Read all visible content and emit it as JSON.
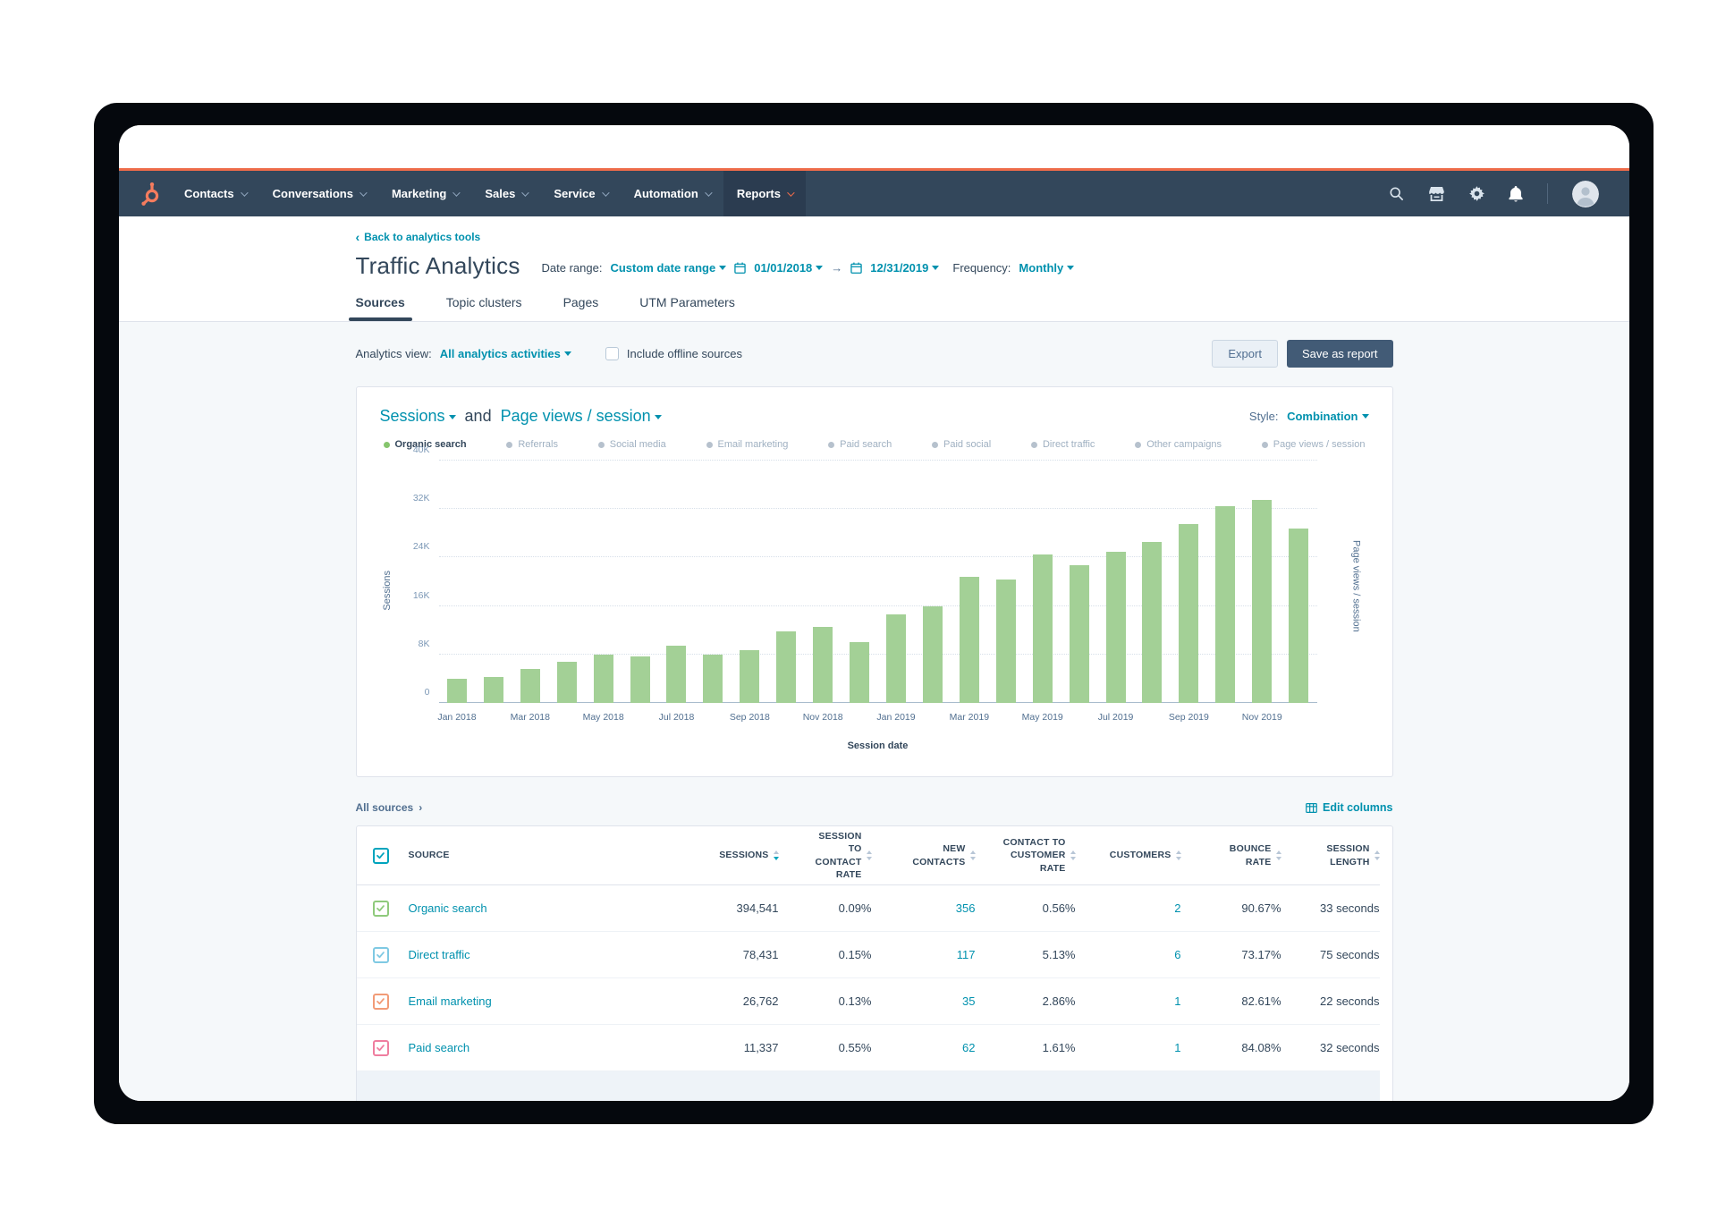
{
  "colors": {
    "accent_orange": "#ee6c4a",
    "logo_orange": "#f57c5e",
    "nav_bg": "#33475b",
    "link_teal": "#0091ae",
    "bar_green": "#a3d096",
    "legend_active_dot": "#86c56d",
    "legend_inactive_dot": "#b6c1cd",
    "frame_black": "#05080d"
  },
  "nav": {
    "items": [
      {
        "label": "Contacts",
        "active": false
      },
      {
        "label": "Conversations",
        "active": false
      },
      {
        "label": "Marketing",
        "active": false
      },
      {
        "label": "Sales",
        "active": false
      },
      {
        "label": "Service",
        "active": false
      },
      {
        "label": "Automation",
        "active": false
      },
      {
        "label": "Reports",
        "active": true
      }
    ]
  },
  "header": {
    "back_link": "Back to analytics tools",
    "title": "Traffic Analytics",
    "date_range_label": "Date range:",
    "date_range_value": "Custom date range",
    "date_start": "01/01/2018",
    "date_arrow": "→",
    "date_end": "12/31/2019",
    "frequency_label": "Frequency:",
    "frequency_value": "Monthly",
    "tabs": [
      {
        "label": "Sources",
        "active": true
      },
      {
        "label": "Topic clusters",
        "active": false
      },
      {
        "label": "Pages",
        "active": false
      },
      {
        "label": "UTM Parameters",
        "active": false
      }
    ]
  },
  "toolbar": {
    "analytics_view_label": "Analytics view:",
    "analytics_view_value": "All analytics activities",
    "offline_checkbox_label": "Include offline sources",
    "export_label": "Export",
    "save_label": "Save as report"
  },
  "chart_card": {
    "metric_primary": "Sessions",
    "conjunction": "and",
    "metric_secondary": "Page views / session",
    "style_label": "Style:",
    "style_value": "Combination",
    "legend": [
      {
        "label": "Organic search",
        "active": true,
        "color": "#86c56d"
      },
      {
        "label": "Referrals",
        "active": false
      },
      {
        "label": "Social media",
        "active": false
      },
      {
        "label": "Email marketing",
        "active": false
      },
      {
        "label": "Paid search",
        "active": false
      },
      {
        "label": "Paid social",
        "active": false
      },
      {
        "label": "Direct traffic",
        "active": false
      },
      {
        "label": "Other campaigns",
        "active": false
      },
      {
        "label": "Page views / session",
        "active": false
      }
    ]
  },
  "chart_data": {
    "type": "bar",
    "title": "Sessions and Page views / session",
    "x": [
      "Jan 2018",
      "Feb 2018",
      "Mar 2018",
      "Apr 2018",
      "May 2018",
      "Jun 2018",
      "Jul 2018",
      "Aug 2018",
      "Sep 2018",
      "Oct 2018",
      "Nov 2018",
      "Dec 2018",
      "Jan 2019",
      "Feb 2019",
      "Mar 2019",
      "Apr 2019",
      "May 2019",
      "Jun 2019",
      "Jul 2019",
      "Aug 2019",
      "Sep 2019",
      "Oct 2019",
      "Nov 2019",
      "Dec 2019"
    ],
    "x_label_every": 2,
    "series": [
      {
        "name": "Organic search",
        "color": "#a3d096",
        "values": [
          4000,
          4300,
          5600,
          6800,
          8000,
          7700,
          9400,
          7900,
          8700,
          11800,
          12500,
          10100,
          14600,
          15900,
          20800,
          20400,
          24500,
          22800,
          25000,
          26600,
          29500,
          32500,
          33500,
          28800
        ]
      }
    ],
    "xlabel": "Session date",
    "ylabel": "Sessions",
    "y2label": "Page views / session",
    "ylim": [
      0,
      40000
    ],
    "yticks": [
      {
        "value": 0,
        "label": "0"
      },
      {
        "value": 8000,
        "label": "8K"
      },
      {
        "value": 16000,
        "label": "16K"
      },
      {
        "value": 24000,
        "label": "24K"
      },
      {
        "value": 32000,
        "label": "32K"
      },
      {
        "value": 40000,
        "label": "40K"
      }
    ],
    "grid": "dotted-horizontal",
    "legend_position": "top"
  },
  "sources_bar": {
    "all_sources": "All sources",
    "edit_columns": "Edit columns"
  },
  "table": {
    "columns": [
      {
        "label": "SOURCE",
        "align": "left",
        "sortable": false
      },
      {
        "label": "SESSIONS",
        "sort": "desc"
      },
      {
        "label": "SESSION TO CONTACT RATE"
      },
      {
        "label": "NEW CONTACTS"
      },
      {
        "label": "CONTACT TO CUSTOMER RATE"
      },
      {
        "label": "CUSTOMERS"
      },
      {
        "label": "BOUNCE RATE"
      },
      {
        "label": "SESSION LENGTH"
      }
    ],
    "teal_cell_indices": [
      2,
      4
    ],
    "rows": [
      {
        "source": "Organic search",
        "checkbox_color": "#8fca7c",
        "cells": [
          "394,541",
          "0.09%",
          "356",
          "0.56%",
          "2",
          "90.67%",
          "33 seconds"
        ]
      },
      {
        "source": "Direct traffic",
        "checkbox_color": "#7fc9e3",
        "cells": [
          "78,431",
          "0.15%",
          "117",
          "5.13%",
          "6",
          "73.17%",
          "75 seconds"
        ]
      },
      {
        "source": "Email marketing",
        "checkbox_color": "#f29b77",
        "cells": [
          "26,762",
          "0.13%",
          "35",
          "2.86%",
          "1",
          "82.61%",
          "22 seconds"
        ]
      },
      {
        "source": "Paid search",
        "checkbox_color": "#ef7e9f",
        "cells": [
          "11,337",
          "0.55%",
          "62",
          "1.61%",
          "1",
          "84.08%",
          "32 seconds"
        ]
      }
    ]
  }
}
